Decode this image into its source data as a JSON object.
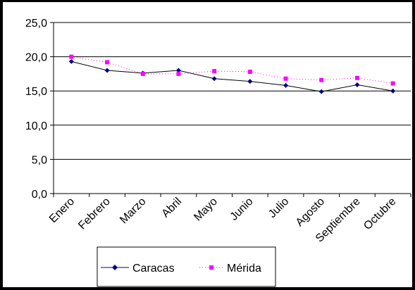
{
  "chart_data": {
    "type": "line",
    "categories": [
      "Enero",
      "Febrero",
      "Marzo",
      "Abril",
      "Mayo",
      "Junio",
      "Julio",
      "Agosto",
      "Septiembre",
      "Octubre"
    ],
    "series": [
      {
        "name": "Caracas",
        "values": [
          19.3,
          18.0,
          17.6,
          18.0,
          16.8,
          16.4,
          15.8,
          14.9,
          15.9,
          15.0
        ],
        "color": "#000080",
        "line": "solid",
        "marker": "diamond"
      },
      {
        "name": "Mérida",
        "values": [
          20.0,
          19.2,
          17.5,
          17.5,
          17.9,
          17.8,
          16.8,
          16.6,
          16.9,
          16.1
        ],
        "color": "#FF00FF",
        "line": "dotted",
        "marker": "square"
      }
    ],
    "y_ticks": [
      "0,0",
      "5,0",
      "10,0",
      "15,0",
      "20,0",
      "25,0"
    ],
    "ylim": [
      0,
      25
    ],
    "grid": true,
    "legend_position": "bottom"
  }
}
